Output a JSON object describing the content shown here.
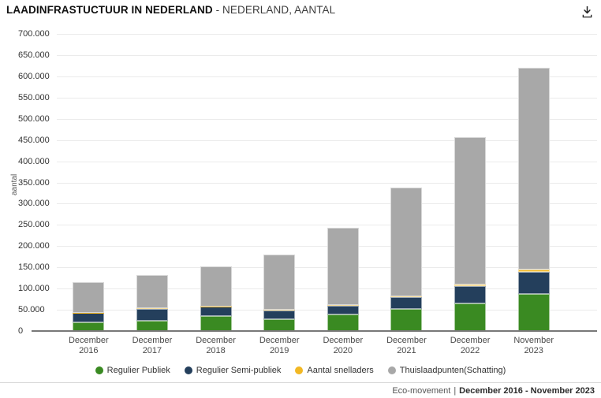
{
  "header": {
    "title_bold": "LAADINFRASTUCTUUR IN NEDERLAND",
    "title_rest": " - NEDERLAND, AANTAL"
  },
  "chart_data": {
    "type": "bar",
    "stacked": true,
    "title": "LAADINFRASTUCTUUR IN NEDERLAND - NEDERLAND, AANTAL",
    "ylabel": "aantal",
    "xlabel": "",
    "ylim": [
      0,
      700000
    ],
    "ytick_step": 50000,
    "ytick_labels": [
      "0",
      "50.000",
      "100.000",
      "150.000",
      "200.000",
      "250.000",
      "300.000",
      "350.000",
      "400.000",
      "450.000",
      "500.000",
      "550.000",
      "600.000",
      "650.000",
      "700.000"
    ],
    "grid": true,
    "legend_position": "bottom",
    "categories": [
      "December 2016",
      "December 2017",
      "December 2018",
      "December 2019",
      "December 2020",
      "December 2021",
      "December 2022",
      "November 2023"
    ],
    "series": [
      {
        "name": "Regulier Publiek",
        "color": "#3a8a22",
        "values": [
          20000,
          23600,
          35500,
          28500,
          39000,
          52600,
          65000,
          88000
        ]
      },
      {
        "name": "Regulier Semi-publiek",
        "color": "#243f5c",
        "values": [
          22200,
          29000,
          21500,
          20600,
          21000,
          26800,
          40900,
          51400
        ]
      },
      {
        "name": "Aantal snelladers",
        "color": "#f2b824",
        "values": [
          600,
          800,
          1100,
          1400,
          1800,
          2600,
          4000,
          5500
        ]
      },
      {
        "name": "Thuislaadpunten(Schatting)",
        "color": "#a8a8a8",
        "values": [
          73000,
          78000,
          93800,
          129200,
          181100,
          255700,
          346800,
          475900
        ]
      }
    ],
    "totals": [
      115800,
      131400,
      151900,
      179700,
      242900,
      337700,
      456700,
      620800
    ]
  },
  "footer": {
    "source_label": "Eco-movement",
    "divider": "|",
    "period_label": "December 2016 - November 2023"
  },
  "icons": {
    "download": "download-icon"
  },
  "colors": {
    "gridline": "#ebebeb",
    "axis_line": "#787878",
    "background": "#ffffff"
  }
}
